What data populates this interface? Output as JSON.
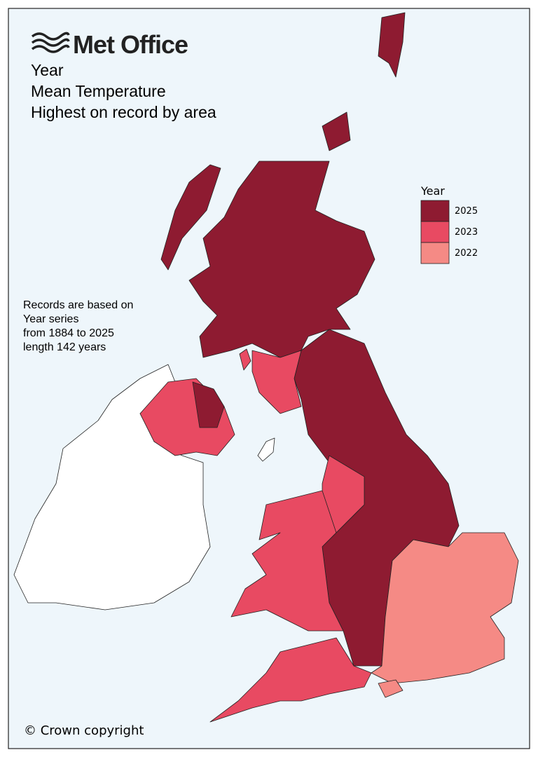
{
  "header": {
    "brand": "Met Office",
    "title_lines": [
      "Year",
      "Mean Temperature",
      "Highest on record by area"
    ]
  },
  "legend": {
    "title": "Year",
    "items": [
      {
        "label": "2025",
        "color": "#8e1b31"
      },
      {
        "label": "2023",
        "color": "#e84a62"
      },
      {
        "label": "2022",
        "color": "#f58a85"
      }
    ]
  },
  "note": [
    "Records are based on",
    "Year series",
    "from 1884 to 2025",
    "length 142 years"
  ],
  "footer": "© Crown copyright"
}
